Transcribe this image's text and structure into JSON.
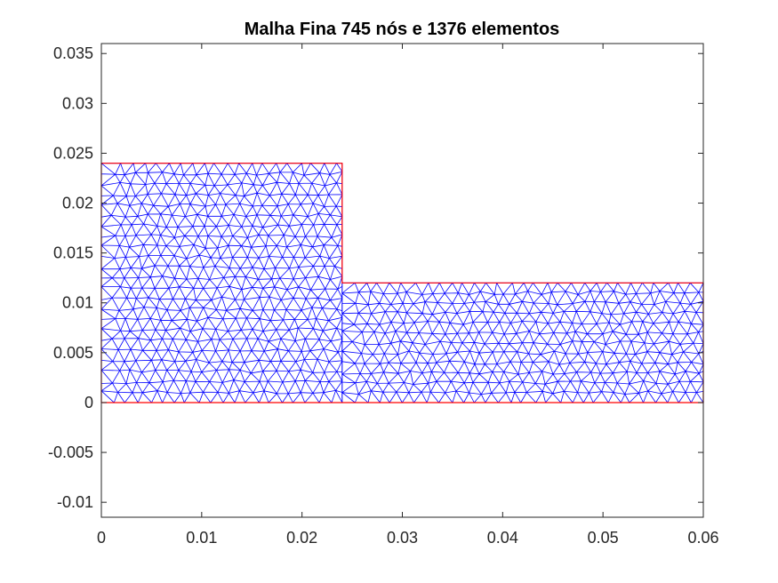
{
  "chart_data": {
    "type": "mesh",
    "title": "Malha Fina 745 nós e 1376 elementos",
    "xlabel": "",
    "ylabel": "",
    "xlim": [
      0,
      0.06
    ],
    "ylim": [
      -0.0115,
      0.036
    ],
    "x_ticks": [
      {
        "value": 0,
        "label": "0"
      },
      {
        "value": 0.01,
        "label": "0.01"
      },
      {
        "value": 0.02,
        "label": "0.02"
      },
      {
        "value": 0.03,
        "label": "0.03"
      },
      {
        "value": 0.04,
        "label": "0.04"
      },
      {
        "value": 0.05,
        "label": "0.05"
      },
      {
        "value": 0.06,
        "label": "0.06"
      }
    ],
    "y_ticks": [
      {
        "value": -0.01,
        "label": "-0.01"
      },
      {
        "value": -0.005,
        "label": "-0.005"
      },
      {
        "value": 0,
        "label": "0"
      },
      {
        "value": 0.005,
        "label": "0.005"
      },
      {
        "value": 0.01,
        "label": "0.01"
      },
      {
        "value": 0.015,
        "label": "0.015"
      },
      {
        "value": 0.02,
        "label": "0.02"
      },
      {
        "value": 0.025,
        "label": "0.025"
      },
      {
        "value": 0.03,
        "label": "0.03"
      },
      {
        "value": 0.035,
        "label": "0.035"
      }
    ],
    "boundary": [
      [
        0,
        0
      ],
      [
        0.06,
        0
      ],
      [
        0.06,
        0.012
      ],
      [
        0.024,
        0.012
      ],
      [
        0.024,
        0.024
      ],
      [
        0,
        0.024
      ]
    ],
    "nodes_count": 745,
    "elements_count": 1376,
    "mesh_color": "#0000ff",
    "boundary_color": "#ff0000",
    "grid": false,
    "box": true
  }
}
